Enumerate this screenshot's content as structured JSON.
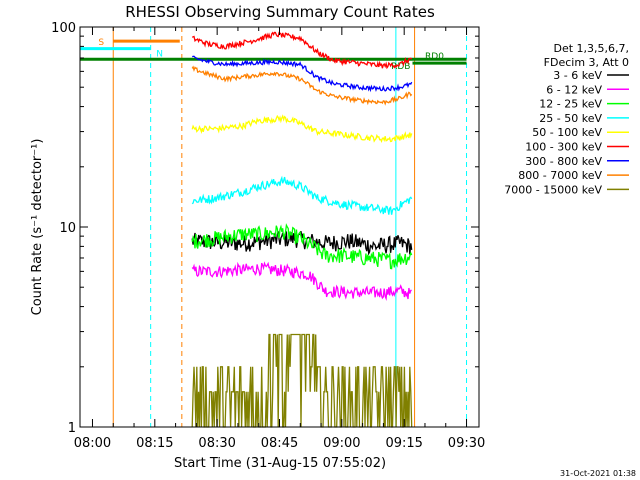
{
  "chart_data": {
    "type": "line",
    "title": "RHESSI Observing Summary Count Rates",
    "xlabel": "Start Time (31-Aug-15 07:55:02)",
    "ylabel": "Count Rate (s⁻¹ detector⁻¹)",
    "y_scale": "log",
    "ylim": [
      1,
      100
    ],
    "y_ticks": [
      {
        "value": 1,
        "label": "1"
      },
      {
        "value": 10,
        "label": "10"
      },
      {
        "value": 100,
        "label": "100"
      }
    ],
    "xlim_minutes": [
      -3,
      93
    ],
    "x_ticks": [
      {
        "value": 0,
        "label": "08:00"
      },
      {
        "value": 15,
        "label": "08:15"
      },
      {
        "value": 30,
        "label": "08:30"
      },
      {
        "value": 45,
        "label": "08:45"
      },
      {
        "value": 60,
        "label": "09:00"
      },
      {
        "value": 75,
        "label": "09:15"
      },
      {
        "value": 90,
        "label": "09:30"
      }
    ],
    "legend_header": [
      "Det 1,3,5,6,7,",
      "FDecim 3, Att 0"
    ],
    "series": [
      {
        "name": "3 - 6 keV",
        "color": "#000000",
        "x": [
          24,
          36,
          48,
          56,
          62,
          68,
          74,
          77
        ],
        "y": [
          8.5,
          8.3,
          8.8,
          8.3,
          8.5,
          8.0,
          8.3,
          8.0
        ]
      },
      {
        "name": "6 - 12 keV",
        "color": "#ff00ff",
        "x": [
          24,
          30,
          40,
          48,
          52,
          56,
          62,
          70,
          74,
          77
        ],
        "y": [
          6.0,
          6.0,
          6.2,
          6.0,
          5.8,
          4.8,
          4.7,
          4.7,
          4.8,
          4.6
        ]
      },
      {
        "name": "12 - 25 keV",
        "color": "#00ff00",
        "x": [
          24,
          30,
          36,
          40,
          46,
          50,
          56,
          60,
          66,
          72,
          77
        ],
        "y": [
          8.5,
          8.8,
          9.2,
          9.2,
          9.5,
          8.8,
          7.2,
          7.2,
          7.0,
          6.8,
          7.2
        ]
      },
      {
        "name": "25 - 50 keV",
        "color": "#00ffff",
        "x": [
          24,
          30,
          36,
          40,
          46,
          50,
          54,
          60,
          66,
          72,
          77
        ],
        "y": [
          13.5,
          14.0,
          15.0,
          16.0,
          17.0,
          16.0,
          14.0,
          13.0,
          12.5,
          12.0,
          14.0
        ]
      },
      {
        "name": "50 - 100 keV",
        "color": "#ffff00",
        "x": [
          24,
          30,
          36,
          40,
          46,
          50,
          54,
          60,
          66,
          72,
          77
        ],
        "y": [
          31,
          31,
          32,
          34,
          35,
          33,
          30,
          29,
          28,
          27.5,
          29
        ]
      },
      {
        "name": "100 - 300 keV",
        "color": "#ff0000",
        "x": [
          24,
          28,
          32,
          38,
          44,
          50,
          54,
          58,
          64,
          70,
          74,
          77
        ],
        "y": [
          88,
          82,
          80,
          85,
          92,
          88,
          75,
          68,
          66,
          64,
          65,
          70
        ]
      },
      {
        "name": "300 - 800 keV",
        "color": "#0000ff",
        "x": [
          24,
          28,
          32,
          38,
          44,
          50,
          54,
          58,
          64,
          70,
          74,
          77
        ],
        "y": [
          70,
          67,
          65,
          66,
          67,
          65,
          56,
          52,
          50,
          49,
          50,
          52
        ]
      },
      {
        "name": "800 - 7000 keV",
        "color": "#ff8000",
        "x": [
          24,
          28,
          32,
          38,
          44,
          50,
          54,
          58,
          64,
          70,
          74,
          77
        ],
        "y": [
          62,
          58,
          55,
          57,
          59,
          55,
          48,
          45,
          43,
          42,
          44,
          47
        ]
      },
      {
        "name": "7000 - 15000 keV",
        "color": "#808000",
        "x": [
          24,
          35,
          44,
          50,
          56,
          60,
          66,
          74,
          77
        ],
        "y": [
          1.7,
          1.6,
          2.1,
          2.5,
          1.8,
          1.5,
          1.6,
          1.5,
          1.7
        ]
      }
    ],
    "annotations": [
      {
        "label": "S",
        "color": "#ff8000",
        "x_start": 5,
        "x_end": 21,
        "y": 85
      },
      {
        "label": "N",
        "color": "#00ffff",
        "x_start": -3,
        "x_end": 14,
        "y": 78
      },
      {
        "label": "RD0",
        "color": "#008000",
        "x_start": 77,
        "x_end": 90,
        "y": 66
      },
      {
        "label": "RDB",
        "color": "#008000",
        "x_start": -3,
        "x_end": 90,
        "y": 69
      }
    ],
    "vlines": [
      {
        "x": 5,
        "color": "#ff8000",
        "dashed": false
      },
      {
        "x": 14,
        "color": "#00ffff",
        "dashed": true
      },
      {
        "x": 21.5,
        "color": "#ff8000",
        "dashed": true
      },
      {
        "x": 73,
        "color": "#00ffff",
        "dashed": false
      },
      {
        "x": 77.5,
        "color": "#ff8000",
        "dashed": false
      },
      {
        "x": 90,
        "color": "#00ffff",
        "dashed": true
      }
    ],
    "timestamp": "31-Oct-2021 01:38"
  }
}
